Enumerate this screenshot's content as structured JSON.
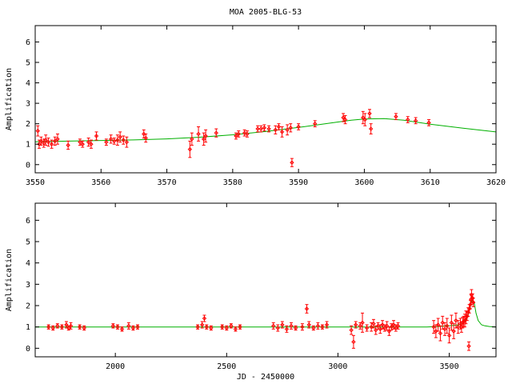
{
  "chart_data": [
    {
      "type": "scatter",
      "title": "MOA 2005-BLG-53",
      "xlabel": "",
      "ylabel": "Amplification",
      "xlim": [
        3550,
        3620
      ],
      "ylim": [
        -0.4,
        6.8
      ],
      "xticks": [
        "3550",
        "3560",
        "3570",
        "3580",
        "3590",
        "3600",
        "3610",
        "3620"
      ],
      "yticks": [
        "0",
        "1",
        "2",
        "3",
        "4",
        "5",
        "6"
      ],
      "model_color": "#00b000",
      "point_color": "#ff0000",
      "model": {
        "x": [
          3550,
          3555,
          3560,
          3565,
          3570,
          3575,
          3580,
          3585,
          3590,
          3595,
          3598,
          3600,
          3603,
          3606,
          3610,
          3615,
          3620
        ],
        "y": [
          1.12,
          1.15,
          1.18,
          1.21,
          1.26,
          1.34,
          1.46,
          1.62,
          1.82,
          2.04,
          2.17,
          2.23,
          2.25,
          2.17,
          1.98,
          1.78,
          1.6
        ]
      },
      "points": [
        {
          "x": 3550.4,
          "y": 1.65,
          "e": 0.25
        },
        {
          "x": 3550.6,
          "y": 1.0,
          "e": 0.2
        },
        {
          "x": 3550.9,
          "y": 1.15,
          "e": 0.2
        },
        {
          "x": 3551.3,
          "y": 1.05,
          "e": 0.2
        },
        {
          "x": 3551.6,
          "y": 1.2,
          "e": 0.25
        },
        {
          "x": 3552.0,
          "y": 1.1,
          "e": 0.2
        },
        {
          "x": 3552.5,
          "y": 1.0,
          "e": 0.2
        },
        {
          "x": 3553.0,
          "y": 1.15,
          "e": 0.2
        },
        {
          "x": 3553.4,
          "y": 1.25,
          "e": 0.25
        },
        {
          "x": 3555.0,
          "y": 0.95,
          "e": 0.2
        },
        {
          "x": 3556.8,
          "y": 1.1,
          "e": 0.15
        },
        {
          "x": 3557.2,
          "y": 1.0,
          "e": 0.15
        },
        {
          "x": 3558.1,
          "y": 1.1,
          "e": 0.2
        },
        {
          "x": 3558.5,
          "y": 1.0,
          "e": 0.2
        },
        {
          "x": 3559.3,
          "y": 1.4,
          "e": 0.2
        },
        {
          "x": 3560.8,
          "y": 1.1,
          "e": 0.15
        },
        {
          "x": 3561.5,
          "y": 1.25,
          "e": 0.2
        },
        {
          "x": 3562.0,
          "y": 1.15,
          "e": 0.15
        },
        {
          "x": 3562.5,
          "y": 1.2,
          "e": 0.25
        },
        {
          "x": 3562.9,
          "y": 1.35,
          "e": 0.25
        },
        {
          "x": 3563.4,
          "y": 1.2,
          "e": 0.2
        },
        {
          "x": 3563.9,
          "y": 1.1,
          "e": 0.25
        },
        {
          "x": 3566.5,
          "y": 1.5,
          "e": 0.2
        },
        {
          "x": 3566.8,
          "y": 1.3,
          "e": 0.2
        },
        {
          "x": 3573.5,
          "y": 0.75,
          "e": 0.4
        },
        {
          "x": 3573.8,
          "y": 1.25,
          "e": 0.3
        },
        {
          "x": 3574.8,
          "y": 1.5,
          "e": 0.35
        },
        {
          "x": 3575.6,
          "y": 1.25,
          "e": 0.3
        },
        {
          "x": 3575.9,
          "y": 1.4,
          "e": 0.3
        },
        {
          "x": 3577.5,
          "y": 1.55,
          "e": 0.2
        },
        {
          "x": 3580.5,
          "y": 1.4,
          "e": 0.15
        },
        {
          "x": 3580.9,
          "y": 1.5,
          "e": 0.15
        },
        {
          "x": 3581.8,
          "y": 1.55,
          "e": 0.15
        },
        {
          "x": 3582.2,
          "y": 1.5,
          "e": 0.15
        },
        {
          "x": 3583.8,
          "y": 1.75,
          "e": 0.15
        },
        {
          "x": 3584.3,
          "y": 1.75,
          "e": 0.15
        },
        {
          "x": 3584.8,
          "y": 1.8,
          "e": 0.15
        },
        {
          "x": 3585.5,
          "y": 1.75,
          "e": 0.15
        },
        {
          "x": 3586.5,
          "y": 1.7,
          "e": 0.2
        },
        {
          "x": 3587.0,
          "y": 1.85,
          "e": 0.15
        },
        {
          "x": 3587.5,
          "y": 1.6,
          "e": 0.25
        },
        {
          "x": 3588.3,
          "y": 1.7,
          "e": 0.25
        },
        {
          "x": 3588.8,
          "y": 1.8,
          "e": 0.2
        },
        {
          "x": 3589.0,
          "y": 0.1,
          "e": 0.2
        },
        {
          "x": 3590.0,
          "y": 1.85,
          "e": 0.15
        },
        {
          "x": 3592.5,
          "y": 2.0,
          "e": 0.15
        },
        {
          "x": 3596.8,
          "y": 2.3,
          "e": 0.2
        },
        {
          "x": 3597.1,
          "y": 2.2,
          "e": 0.2
        },
        {
          "x": 3599.8,
          "y": 2.3,
          "e": 0.3
        },
        {
          "x": 3600.1,
          "y": 2.2,
          "e": 0.3
        },
        {
          "x": 3600.8,
          "y": 2.5,
          "e": 0.2
        },
        {
          "x": 3601.0,
          "y": 1.75,
          "e": 0.25
        },
        {
          "x": 3604.8,
          "y": 2.35,
          "e": 0.15
        },
        {
          "x": 3606.6,
          "y": 2.2,
          "e": 0.15
        },
        {
          "x": 3607.8,
          "y": 2.15,
          "e": 0.15
        },
        {
          "x": 3609.8,
          "y": 2.05,
          "e": 0.15
        }
      ]
    },
    {
      "type": "scatter",
      "title": "",
      "xlabel": "JD - 2450000",
      "ylabel": "Amplification",
      "xlim": [
        1640,
        3710
      ],
      "ylim": [
        -0.4,
        6.8
      ],
      "xticks": [
        "2000",
        "2500",
        "3000",
        "3500"
      ],
      "yticks": [
        "0",
        "1",
        "2",
        "3",
        "4",
        "5",
        "6"
      ],
      "model_color": "#00b000",
      "point_color": "#ff0000",
      "model": {
        "x": [
          1640,
          3400,
          3450,
          3500,
          3530,
          3550,
          3565,
          3580,
          3590,
          3598,
          3605,
          3612,
          3620,
          3630,
          3645,
          3660,
          3680,
          3710
        ],
        "y": [
          1.0,
          1.0,
          1.02,
          1.05,
          1.08,
          1.12,
          1.2,
          1.4,
          1.75,
          2.15,
          2.28,
          2.15,
          1.65,
          1.3,
          1.1,
          1.05,
          1.02,
          1.0
        ]
      },
      "points": [
        {
          "x": 1700,
          "y": 1.0,
          "e": 0.1
        },
        {
          "x": 1720,
          "y": 0.95,
          "e": 0.1
        },
        {
          "x": 1740,
          "y": 1.05,
          "e": 0.1
        },
        {
          "x": 1760,
          "y": 1.0,
          "e": 0.1
        },
        {
          "x": 1780,
          "y": 1.1,
          "e": 0.15
        },
        {
          "x": 1790,
          "y": 0.95,
          "e": 0.1
        },
        {
          "x": 1800,
          "y": 1.05,
          "e": 0.15
        },
        {
          "x": 1840,
          "y": 1.0,
          "e": 0.1
        },
        {
          "x": 1860,
          "y": 0.95,
          "e": 0.1
        },
        {
          "x": 1990,
          "y": 1.05,
          "e": 0.1
        },
        {
          "x": 2010,
          "y": 1.0,
          "e": 0.1
        },
        {
          "x": 2030,
          "y": 0.9,
          "e": 0.1
        },
        {
          "x": 2060,
          "y": 1.05,
          "e": 0.15
        },
        {
          "x": 2080,
          "y": 0.95,
          "e": 0.1
        },
        {
          "x": 2100,
          "y": 1.0,
          "e": 0.1
        },
        {
          "x": 2370,
          "y": 1.0,
          "e": 0.1
        },
        {
          "x": 2390,
          "y": 1.1,
          "e": 0.15
        },
        {
          "x": 2400,
          "y": 1.4,
          "e": 0.15
        },
        {
          "x": 2410,
          "y": 1.0,
          "e": 0.1
        },
        {
          "x": 2430,
          "y": 0.95,
          "e": 0.1
        },
        {
          "x": 2480,
          "y": 1.0,
          "e": 0.1
        },
        {
          "x": 2500,
          "y": 0.95,
          "e": 0.1
        },
        {
          "x": 2520,
          "y": 1.05,
          "e": 0.1
        },
        {
          "x": 2540,
          "y": 0.9,
          "e": 0.1
        },
        {
          "x": 2560,
          "y": 1.0,
          "e": 0.1
        },
        {
          "x": 2710,
          "y": 1.05,
          "e": 0.15
        },
        {
          "x": 2730,
          "y": 0.95,
          "e": 0.15
        },
        {
          "x": 2750,
          "y": 1.1,
          "e": 0.15
        },
        {
          "x": 2770,
          "y": 0.9,
          "e": 0.15
        },
        {
          "x": 2790,
          "y": 1.05,
          "e": 0.15
        },
        {
          "x": 2810,
          "y": 0.95,
          "e": 0.1
        },
        {
          "x": 2840,
          "y": 1.0,
          "e": 0.15
        },
        {
          "x": 2860,
          "y": 1.85,
          "e": 0.2
        },
        {
          "x": 2870,
          "y": 1.1,
          "e": 0.15
        },
        {
          "x": 2890,
          "y": 0.95,
          "e": 0.1
        },
        {
          "x": 2910,
          "y": 1.05,
          "e": 0.15
        },
        {
          "x": 2930,
          "y": 1.0,
          "e": 0.1
        },
        {
          "x": 2950,
          "y": 1.1,
          "e": 0.15
        },
        {
          "x": 3060,
          "y": 0.85,
          "e": 0.2
        },
        {
          "x": 3070,
          "y": 0.3,
          "e": 0.3
        },
        {
          "x": 3080,
          "y": 1.1,
          "e": 0.15
        },
        {
          "x": 3100,
          "y": 1.05,
          "e": 0.15
        },
        {
          "x": 3110,
          "y": 1.2,
          "e": 0.45
        },
        {
          "x": 3130,
          "y": 0.95,
          "e": 0.15
        },
        {
          "x": 3150,
          "y": 1.0,
          "e": 0.2
        },
        {
          "x": 3160,
          "y": 1.15,
          "e": 0.2
        },
        {
          "x": 3170,
          "y": 0.85,
          "e": 0.2
        },
        {
          "x": 3180,
          "y": 1.05,
          "e": 0.15
        },
        {
          "x": 3190,
          "y": 0.9,
          "e": 0.2
        },
        {
          "x": 3200,
          "y": 1.1,
          "e": 0.2
        },
        {
          "x": 3210,
          "y": 0.95,
          "e": 0.15
        },
        {
          "x": 3220,
          "y": 1.05,
          "e": 0.2
        },
        {
          "x": 3230,
          "y": 0.8,
          "e": 0.2
        },
        {
          "x": 3240,
          "y": 1.0,
          "e": 0.15
        },
        {
          "x": 3250,
          "y": 1.1,
          "e": 0.2
        },
        {
          "x": 3260,
          "y": 0.95,
          "e": 0.15
        },
        {
          "x": 3270,
          "y": 1.05,
          "e": 0.15
        },
        {
          "x": 3430,
          "y": 1.0,
          "e": 0.3
        },
        {
          "x": 3440,
          "y": 0.8,
          "e": 0.3
        },
        {
          "x": 3450,
          "y": 1.1,
          "e": 0.3
        },
        {
          "x": 3460,
          "y": 0.7,
          "e": 0.35
        },
        {
          "x": 3470,
          "y": 1.2,
          "e": 0.3
        },
        {
          "x": 3480,
          "y": 0.9,
          "e": 0.3
        },
        {
          "x": 3490,
          "y": 1.05,
          "e": 0.35
        },
        {
          "x": 3500,
          "y": 0.6,
          "e": 0.35
        },
        {
          "x": 3510,
          "y": 1.2,
          "e": 0.35
        },
        {
          "x": 3520,
          "y": 0.8,
          "e": 0.35
        },
        {
          "x": 3530,
          "y": 1.3,
          "e": 0.35
        },
        {
          "x": 3540,
          "y": 1.0,
          "e": 0.3
        },
        {
          "x": 3550,
          "y": 1.15,
          "e": 0.25
        },
        {
          "x": 3555,
          "y": 1.0,
          "e": 0.25
        },
        {
          "x": 3560,
          "y": 1.2,
          "e": 0.25
        },
        {
          "x": 3565,
          "y": 1.25,
          "e": 0.25
        },
        {
          "x": 3570,
          "y": 1.3,
          "e": 0.3
        },
        {
          "x": 3575,
          "y": 1.45,
          "e": 0.3
        },
        {
          "x": 3580,
          "y": 1.5,
          "e": 0.2
        },
        {
          "x": 3585,
          "y": 1.7,
          "e": 0.2
        },
        {
          "x": 3588,
          "y": 0.1,
          "e": 0.2
        },
        {
          "x": 3590,
          "y": 1.85,
          "e": 0.2
        },
        {
          "x": 3595,
          "y": 2.05,
          "e": 0.2
        },
        {
          "x": 3598,
          "y": 2.3,
          "e": 0.25
        },
        {
          "x": 3600,
          "y": 2.5,
          "e": 0.25
        },
        {
          "x": 3605,
          "y": 2.35,
          "e": 0.2
        },
        {
          "x": 3608,
          "y": 2.15,
          "e": 0.2
        }
      ]
    }
  ]
}
